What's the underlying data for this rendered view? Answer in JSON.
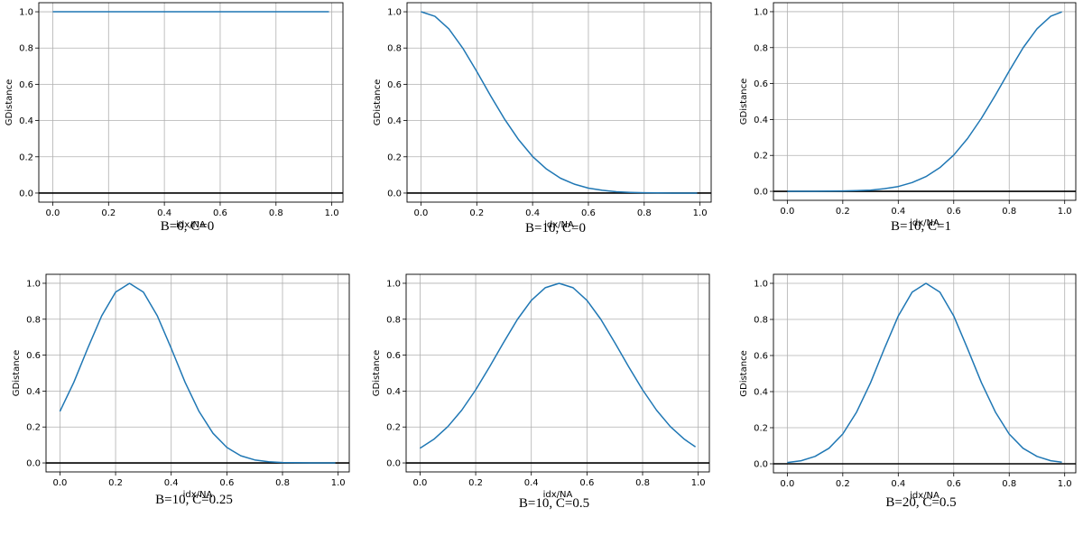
{
  "chart_data": [
    {
      "type": "line",
      "caption": "B=0,  C=0",
      "xlabel": "idx/NA",
      "ylabel": "GDistance",
      "xlim": [
        -0.05,
        1.04
      ],
      "ylim": [
        -0.05,
        1.05
      ],
      "xticks": [
        "0.0",
        "0.2",
        "0.4",
        "0.6",
        "0.8",
        "1.0"
      ],
      "yticks": [
        "0.0",
        "0.2",
        "0.4",
        "0.6",
        "0.8",
        "1.0"
      ],
      "grid": true,
      "hline": 0,
      "series": [
        {
          "color": "#1f77b4",
          "x": [
            0.0,
            0.1,
            0.2,
            0.3,
            0.4,
            0.5,
            0.6,
            0.7,
            0.8,
            0.9,
            0.99
          ],
          "y": [
            1.0,
            1.0,
            1.0,
            1.0,
            1.0,
            1.0,
            1.0,
            1.0,
            1.0,
            1.0,
            1.0
          ]
        }
      ]
    },
    {
      "type": "line",
      "caption": "B=10,  C=0",
      "xlabel": "idx/NA",
      "ylabel": "GDistance",
      "xlim": [
        -0.05,
        1.04
      ],
      "ylim": [
        -0.05,
        1.05
      ],
      "xticks": [
        "0.0",
        "0.2",
        "0.4",
        "0.6",
        "0.8",
        "1.0"
      ],
      "yticks": [
        "0.0",
        "0.2",
        "0.4",
        "0.6",
        "0.8",
        "1.0"
      ],
      "grid": true,
      "hline": 0,
      "series": [
        {
          "color": "#1f77b4",
          "x": [
            0.0,
            0.05,
            0.1,
            0.15,
            0.2,
            0.25,
            0.3,
            0.35,
            0.4,
            0.45,
            0.5,
            0.55,
            0.6,
            0.65,
            0.7,
            0.75,
            0.8,
            0.85,
            0.9,
            0.95,
            0.99
          ],
          "y": [
            1.0,
            0.975,
            0.905,
            0.799,
            0.67,
            0.535,
            0.407,
            0.294,
            0.202,
            0.132,
            0.082,
            0.049,
            0.027,
            0.015,
            0.007,
            0.004,
            0.002,
            0.001,
            0.0,
            0.0,
            0.0
          ]
        }
      ]
    },
    {
      "type": "line",
      "caption": "B=10,  C=1",
      "xlabel": "idx/NA",
      "ylabel": "GDistance",
      "xlim": [
        -0.05,
        1.04
      ],
      "ylim": [
        -0.05,
        1.05
      ],
      "xticks": [
        "0.0",
        "0.2",
        "0.4",
        "0.6",
        "0.8",
        "1.0"
      ],
      "yticks": [
        "0.0",
        "0.2",
        "0.4",
        "0.6",
        "0.8",
        "1.0"
      ],
      "grid": true,
      "hline": 0,
      "series": [
        {
          "color": "#1f77b4",
          "x": [
            0.0,
            0.05,
            0.1,
            0.15,
            0.2,
            0.25,
            0.3,
            0.35,
            0.4,
            0.45,
            0.5,
            0.55,
            0.6,
            0.65,
            0.7,
            0.75,
            0.8,
            0.85,
            0.9,
            0.95,
            0.99
          ],
          "y": [
            0.0,
            0.0,
            0.0,
            0.001,
            0.002,
            0.004,
            0.007,
            0.015,
            0.027,
            0.049,
            0.082,
            0.132,
            0.202,
            0.294,
            0.407,
            0.535,
            0.67,
            0.799,
            0.905,
            0.975,
            0.999
          ]
        }
      ]
    },
    {
      "type": "line",
      "caption": "B=10,  C=0.25",
      "xlabel": "idx/NA",
      "ylabel": "GDistance",
      "xlim": [
        -0.05,
        1.04
      ],
      "ylim": [
        -0.05,
        1.05
      ],
      "xticks": [
        "0.0",
        "0.2",
        "0.4",
        "0.6",
        "0.8",
        "1.0"
      ],
      "yticks": [
        "0.0",
        "0.2",
        "0.4",
        "0.6",
        "0.8",
        "1.0"
      ],
      "grid": true,
      "hline": 0,
      "series": [
        {
          "color": "#1f77b4",
          "x": [
            0.0,
            0.05,
            0.1,
            0.15,
            0.2,
            0.25,
            0.3,
            0.35,
            0.4,
            0.45,
            0.5,
            0.55,
            0.6,
            0.65,
            0.7,
            0.75,
            0.8,
            0.85,
            0.9,
            0.95,
            0.99
          ],
          "y": [
            0.287,
            0.449,
            0.638,
            0.819,
            0.951,
            1.0,
            0.951,
            0.819,
            0.638,
            0.449,
            0.287,
            0.165,
            0.086,
            0.04,
            0.017,
            0.007,
            0.002,
            0.001,
            0.0,
            0.0,
            0.0
          ]
        }
      ]
    },
    {
      "type": "line",
      "caption": "B=10,  C=0.5",
      "xlabel": "idx/NA",
      "ylabel": "GDistance",
      "xlim": [
        -0.05,
        1.04
      ],
      "ylim": [
        -0.05,
        1.05
      ],
      "xticks": [
        "0.0",
        "0.2",
        "0.4",
        "0.6",
        "0.8",
        "1.0"
      ],
      "yticks": [
        "0.0",
        "0.2",
        "0.4",
        "0.6",
        "0.8",
        "1.0"
      ],
      "grid": true,
      "hline": 0,
      "series": [
        {
          "color": "#1f77b4",
          "x": [
            0.0,
            0.05,
            0.1,
            0.15,
            0.2,
            0.25,
            0.3,
            0.35,
            0.4,
            0.45,
            0.5,
            0.55,
            0.6,
            0.65,
            0.7,
            0.75,
            0.8,
            0.85,
            0.9,
            0.95,
            0.99
          ],
          "y": [
            0.082,
            0.132,
            0.202,
            0.294,
            0.407,
            0.535,
            0.67,
            0.799,
            0.905,
            0.975,
            1.0,
            0.975,
            0.905,
            0.799,
            0.67,
            0.535,
            0.407,
            0.294,
            0.202,
            0.132,
            0.089
          ]
        }
      ]
    },
    {
      "type": "line",
      "caption": "B=20,  C=0.5",
      "xlabel": "idx/NA",
      "ylabel": "GDistance",
      "xlim": [
        -0.05,
        1.04
      ],
      "ylim": [
        -0.05,
        1.05
      ],
      "xticks": [
        "0.0",
        "0.2",
        "0.4",
        "0.6",
        "0.8",
        "1.0"
      ],
      "yticks": [
        "0.0",
        "0.2",
        "0.4",
        "0.6",
        "0.8",
        "1.0"
      ],
      "grid": true,
      "hline": 0,
      "series": [
        {
          "color": "#1f77b4",
          "x": [
            0.0,
            0.05,
            0.1,
            0.15,
            0.2,
            0.25,
            0.3,
            0.35,
            0.4,
            0.45,
            0.5,
            0.55,
            0.6,
            0.65,
            0.7,
            0.75,
            0.8,
            0.85,
            0.9,
            0.95,
            0.99
          ],
          "y": [
            0.007,
            0.017,
            0.041,
            0.086,
            0.165,
            0.287,
            0.449,
            0.638,
            0.819,
            0.951,
            1.0,
            0.951,
            0.819,
            0.638,
            0.449,
            0.287,
            0.165,
            0.086,
            0.041,
            0.017,
            0.009
          ]
        }
      ]
    }
  ]
}
